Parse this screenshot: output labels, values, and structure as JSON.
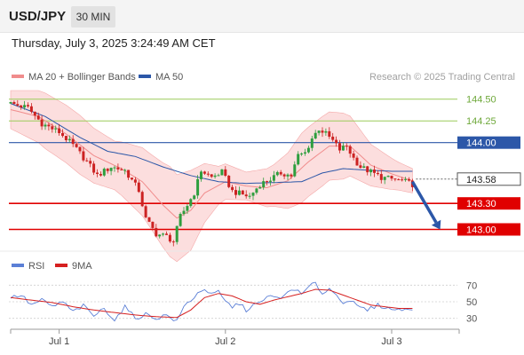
{
  "header": {
    "symbol": "USD/JPY",
    "timeframe": "30 MIN"
  },
  "timestamp": "Thursday, July 3, 2025 3:24:49 AM CET",
  "legend": {
    "ma20_label": "MA 20 + Bollinger Bands",
    "ma50_label": "MA 50",
    "ma20_color": "#f08c8c",
    "ma50_color": "#2c57a8"
  },
  "watermark": "Research © 2025 Trading Central",
  "rsi_legend": {
    "rsi_label": "RSI",
    "ma_label": "9MA",
    "rsi_color": "#5b7fd6",
    "ma_color": "#d62020"
  },
  "colors": {
    "up": "#2e9e3e",
    "down": "#cc2222",
    "support": "#e00000",
    "resistance_blue": "#2c57a8",
    "resistance_green": "#9ccc5a",
    "arrow": "#2c57a8",
    "band": "#fbd3d3"
  },
  "chart_data": [
    {
      "type": "candlestick",
      "title": "",
      "y_range": [
        142.76,
        144.62
      ],
      "x_labels": [
        {
          "label": "Jul 1",
          "index": 14
        },
        {
          "label": "Jul 2",
          "index": 62
        },
        {
          "label": "Jul 3",
          "index": 110
        }
      ],
      "current_price": {
        "label": "143.58",
        "value": 143.58
      },
      "levels": [
        {
          "label": "144.50",
          "value": 144.5,
          "kind": "green"
        },
        {
          "label": "144.25",
          "value": 144.25,
          "kind": "green"
        },
        {
          "label": "144.00",
          "value": 144.0,
          "kind": "blue"
        },
        {
          "label": "143.30",
          "value": 143.3,
          "kind": "red"
        },
        {
          "label": "143.00",
          "value": 143.0,
          "kind": "red"
        }
      ],
      "forecast_arrow": {
        "from": {
          "index": 116,
          "value": 143.55
        },
        "to": {
          "index": 124,
          "value": 143.0
        }
      },
      "anchors": [
        [
          0,
          144.45
        ],
        [
          5,
          144.4
        ],
        [
          9,
          144.22
        ],
        [
          14,
          144.12
        ],
        [
          18,
          143.97
        ],
        [
          22,
          143.78
        ],
        [
          25,
          143.62
        ],
        [
          29,
          143.72
        ],
        [
          33,
          143.68
        ],
        [
          37,
          143.45
        ],
        [
          39,
          143.12
        ],
        [
          42,
          142.95
        ],
        [
          45,
          142.92
        ],
        [
          47,
          142.86
        ],
        [
          49,
          143.15
        ],
        [
          51,
          143.28
        ],
        [
          53,
          143.42
        ],
        [
          55,
          143.68
        ],
        [
          58,
          143.6
        ],
        [
          61,
          143.66
        ],
        [
          64,
          143.44
        ],
        [
          67,
          143.4
        ],
        [
          69,
          143.38
        ],
        [
          72,
          143.52
        ],
        [
          75,
          143.58
        ],
        [
          78,
          143.65
        ],
        [
          81,
          143.62
        ],
        [
          83,
          143.85
        ],
        [
          85,
          143.88
        ],
        [
          87,
          144.05
        ],
        [
          89,
          144.16
        ],
        [
          91,
          144.1
        ],
        [
          93,
          144.02
        ],
        [
          95,
          143.92
        ],
        [
          97,
          143.96
        ],
        [
          99,
          143.82
        ],
        [
          101,
          143.72
        ],
        [
          104,
          143.66
        ],
        [
          107,
          143.6
        ],
        [
          110,
          143.58
        ],
        [
          113,
          143.56
        ],
        [
          116,
          143.52
        ]
      ],
      "ma20": [
        [
          0,
          144.38
        ],
        [
          8,
          144.3
        ],
        [
          16,
          144.1
        ],
        [
          24,
          143.85
        ],
        [
          32,
          143.7
        ],
        [
          38,
          143.55
        ],
        [
          44,
          143.28
        ],
        [
          48,
          143.13
        ],
        [
          52,
          143.22
        ],
        [
          56,
          143.42
        ],
        [
          62,
          143.55
        ],
        [
          68,
          143.5
        ],
        [
          74,
          143.48
        ],
        [
          80,
          143.56
        ],
        [
          86,
          143.78
        ],
        [
          92,
          143.96
        ],
        [
          98,
          143.96
        ],
        [
          104,
          143.74
        ],
        [
          110,
          143.64
        ],
        [
          116,
          143.56
        ]
      ],
      "ma50": [
        [
          0,
          144.45
        ],
        [
          10,
          144.3
        ],
        [
          20,
          144.06
        ],
        [
          28,
          143.9
        ],
        [
          36,
          143.84
        ],
        [
          44,
          143.72
        ],
        [
          52,
          143.62
        ],
        [
          60,
          143.55
        ],
        [
          68,
          143.53
        ],
        [
          76,
          143.54
        ],
        [
          84,
          143.55
        ],
        [
          90,
          143.65
        ],
        [
          96,
          143.7
        ],
        [
          104,
          143.68
        ],
        [
          110,
          143.67
        ],
        [
          116,
          143.67
        ]
      ],
      "band_width": [
        [
          0,
          0.22
        ],
        [
          10,
          0.32
        ],
        [
          20,
          0.34
        ],
        [
          30,
          0.28
        ],
        [
          40,
          0.42
        ],
        [
          46,
          0.52
        ],
        [
          52,
          0.46
        ],
        [
          60,
          0.22
        ],
        [
          68,
          0.16
        ],
        [
          76,
          0.24
        ],
        [
          84,
          0.4
        ],
        [
          90,
          0.4
        ],
        [
          96,
          0.38
        ],
        [
          104,
          0.24
        ],
        [
          112,
          0.16
        ],
        [
          116,
          0.14
        ]
      ]
    },
    {
      "type": "line",
      "title": "",
      "y_range": [
        20,
        80
      ],
      "ticks": [
        70,
        50,
        30
      ],
      "series": [
        {
          "name": "RSI",
          "values": [
            [
              0,
              55
            ],
            [
              3,
              58
            ],
            [
              6,
              46
            ],
            [
              9,
              52
            ],
            [
              12,
              44
            ],
            [
              15,
              50
            ],
            [
              18,
              38
            ],
            [
              21,
              45
            ],
            [
              24,
              33
            ],
            [
              27,
              42
            ],
            [
              30,
              28
            ],
            [
              33,
              44
            ],
            [
              36,
              30
            ],
            [
              39,
              35
            ],
            [
              42,
              30
            ],
            [
              45,
              34
            ],
            [
              48,
              26
            ],
            [
              50,
              44
            ],
            [
              52,
              52
            ],
            [
              54,
              60
            ],
            [
              56,
              66
            ],
            [
              58,
              58
            ],
            [
              60,
              62
            ],
            [
              62,
              50
            ],
            [
              64,
              44
            ],
            [
              66,
              48
            ],
            [
              68,
              40
            ],
            [
              70,
              46
            ],
            [
              72,
              48
            ],
            [
              74,
              55
            ],
            [
              76,
              58
            ],
            [
              78,
              52
            ],
            [
              80,
              62
            ],
            [
              82,
              66
            ],
            [
              84,
              58
            ],
            [
              86,
              68
            ],
            [
              88,
              72
            ],
            [
              90,
              60
            ],
            [
              92,
              66
            ],
            [
              94,
              58
            ],
            [
              96,
              50
            ],
            [
              98,
              52
            ],
            [
              100,
              44
            ],
            [
              103,
              40
            ],
            [
              106,
              46
            ],
            [
              109,
              42
            ],
            [
              112,
              40
            ],
            [
              115,
              42
            ],
            [
              117,
              43
            ]
          ]
        },
        {
          "name": "9MA",
          "values": [
            [
              0,
              55
            ],
            [
              6,
              52
            ],
            [
              12,
              49
            ],
            [
              18,
              44
            ],
            [
              24,
              40
            ],
            [
              30,
              37
            ],
            [
              36,
              34
            ],
            [
              42,
              32
            ],
            [
              48,
              31
            ],
            [
              52,
              40
            ],
            [
              56,
              55
            ],
            [
              60,
              60
            ],
            [
              64,
              57
            ],
            [
              68,
              50
            ],
            [
              72,
              47
            ],
            [
              76,
              52
            ],
            [
              80,
              56
            ],
            [
              84,
              60
            ],
            [
              88,
              65
            ],
            [
              92,
              64
            ],
            [
              96,
              58
            ],
            [
              100,
              52
            ],
            [
              104,
              46
            ],
            [
              108,
              44
            ],
            [
              112,
              42
            ],
            [
              117,
              42
            ]
          ]
        }
      ]
    }
  ]
}
